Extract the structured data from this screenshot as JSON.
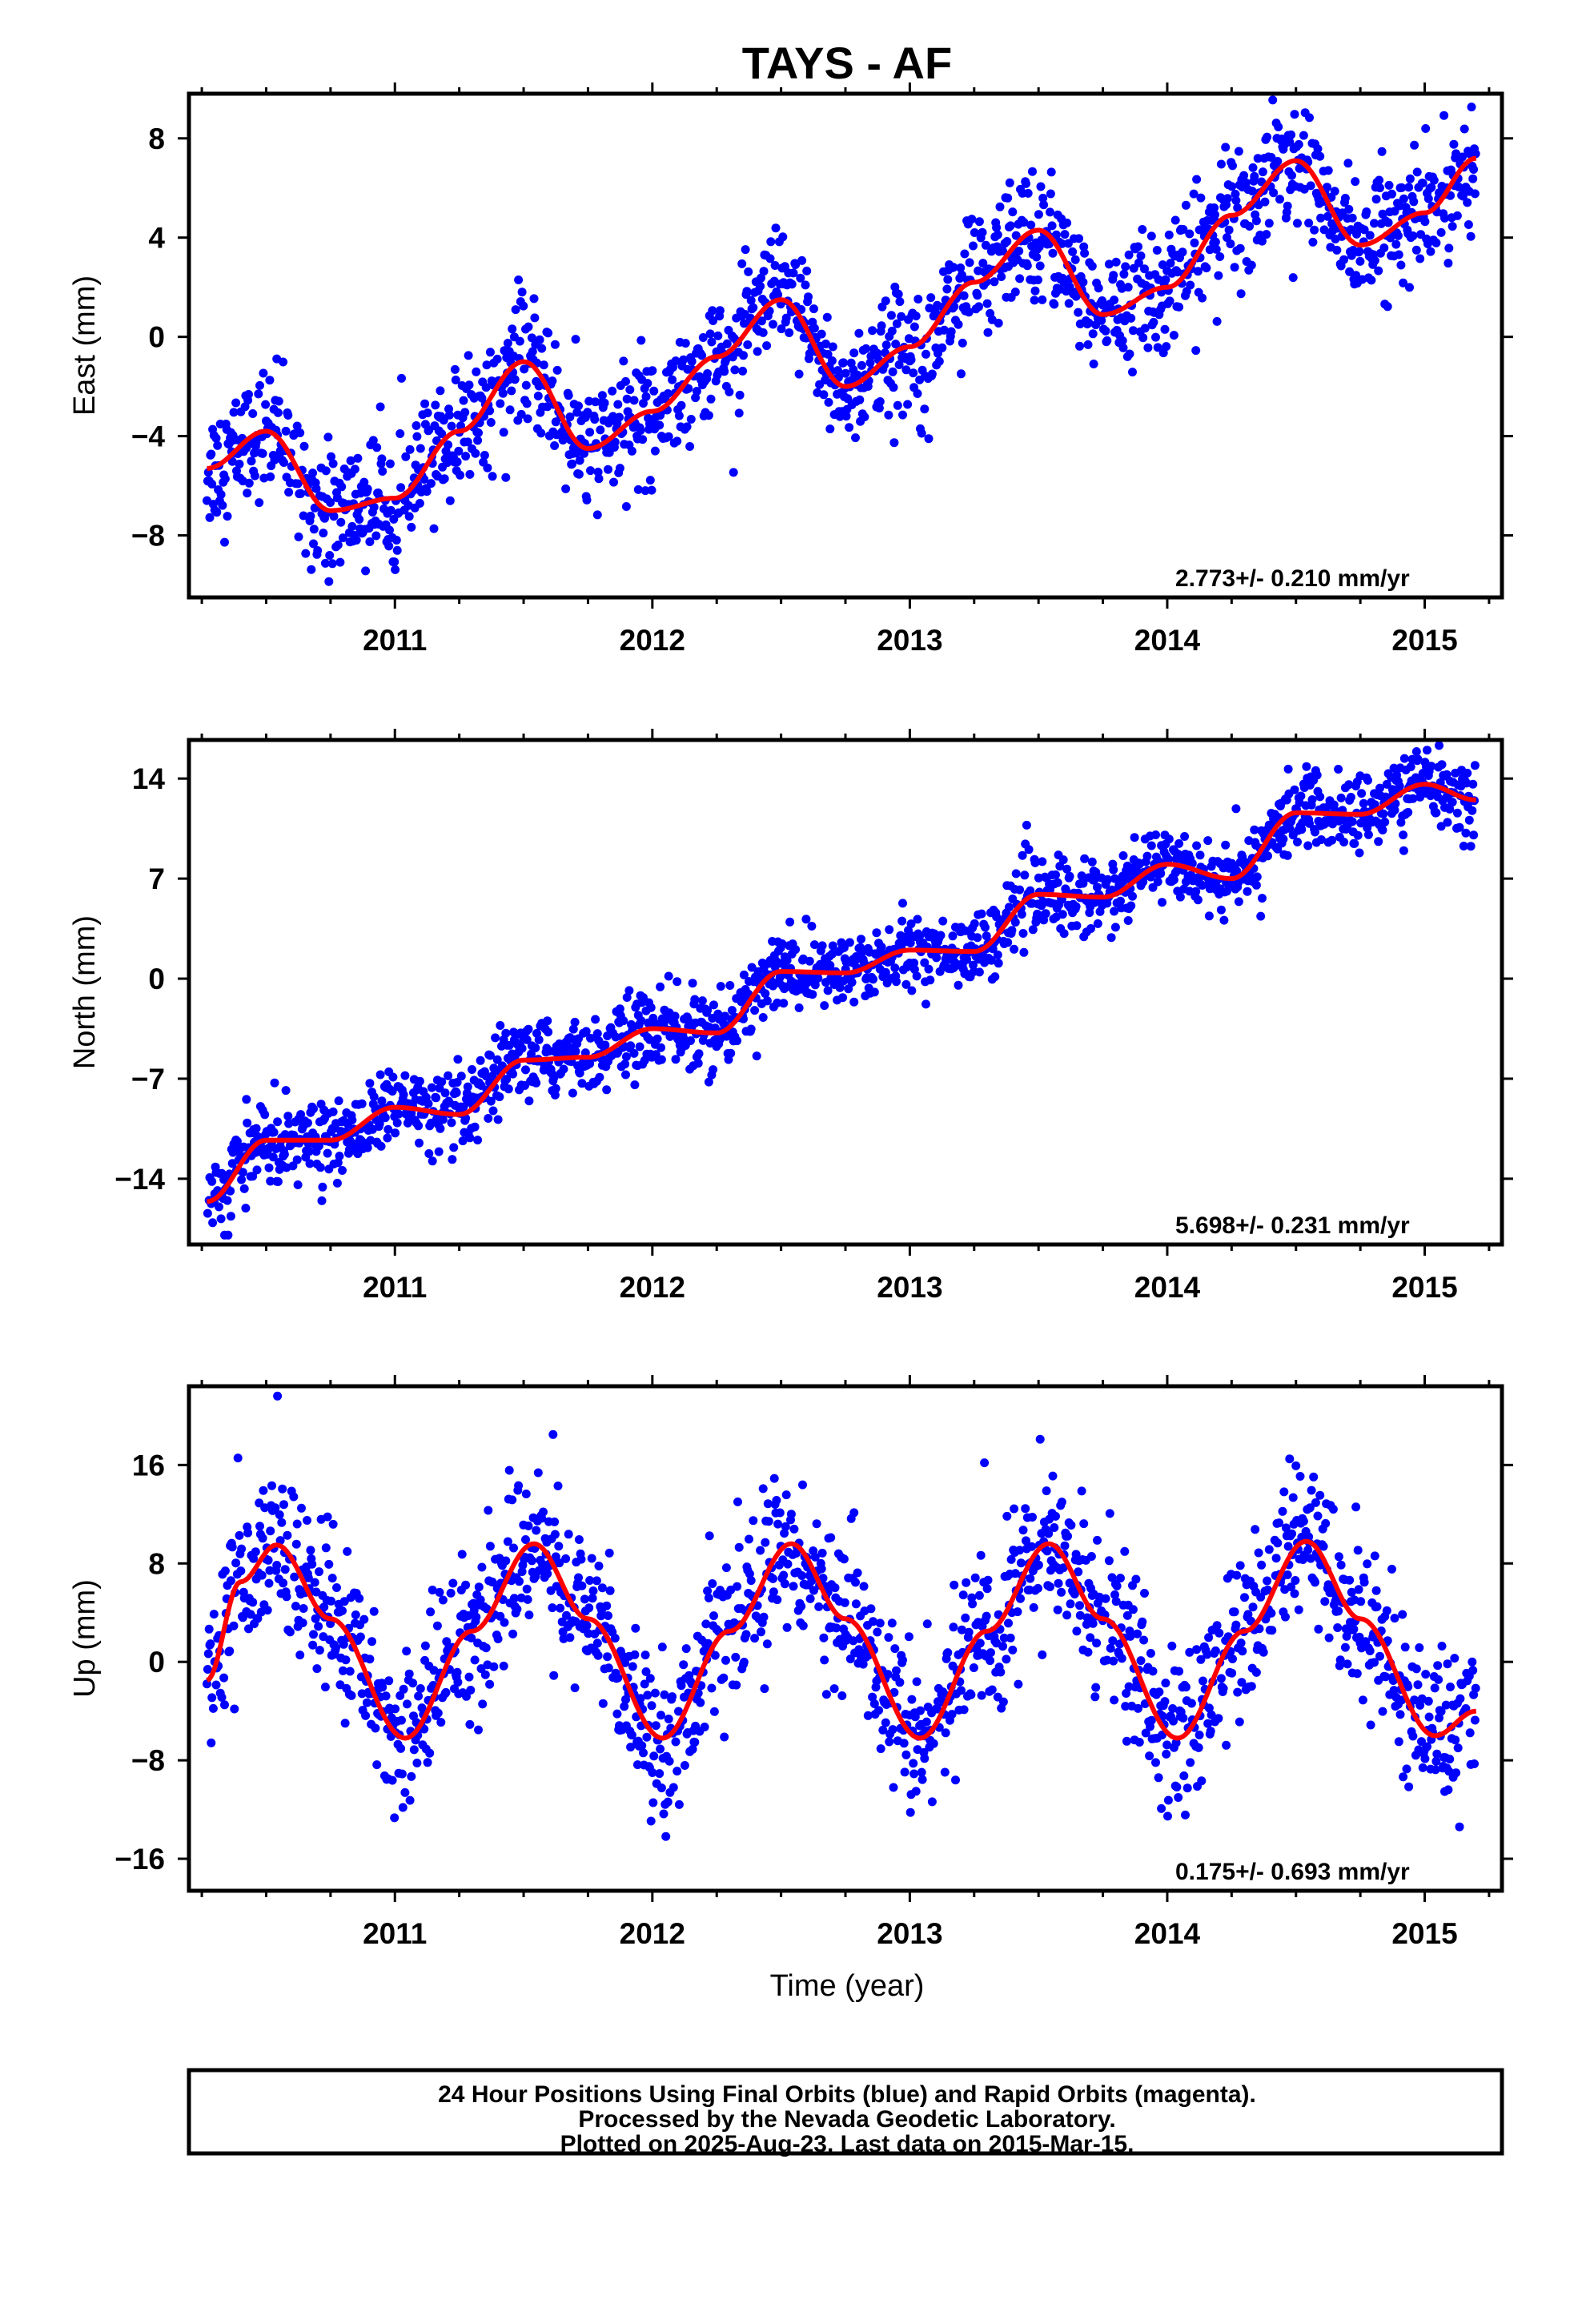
{
  "title": "TAYS - AF",
  "x_axis_label": "Time (year)",
  "caption": {
    "line1": "24 Hour Positions Using Final Orbits (blue) and Rapid Orbits (magenta).",
    "line2": "Processed by the Nevada Geodetic Laboratory.",
    "line3": "Plotted on 2025-Aug-23. Last data on 2015-Mar-15."
  },
  "colors": {
    "points": "#0000ff",
    "model": "#ff0000",
    "frame": "#000000"
  },
  "chart_data": [
    {
      "type": "scatter",
      "title": "TAYS - AF",
      "ylabel": "East (mm)",
      "xlabel": "",
      "xlim": [
        2010.2,
        2015.3
      ],
      "ylim": [
        -10.5,
        9.8
      ],
      "y_ticks": [
        8,
        4,
        0,
        -4,
        -8
      ],
      "y_tick_labels": [
        "8",
        "4",
        "0",
        "−4",
        "−8"
      ],
      "x_ticks": [
        2011,
        2012,
        2013,
        2014,
        2015
      ],
      "x_tick_labels": [
        "2011",
        "2012",
        "2013",
        "2014",
        "2015"
      ],
      "rate": "2.773+/- 0.210 mm/yr",
      "data_start": 2010.27,
      "data_end": 2015.2,
      "series": [
        {
          "name": "24 Hour Positions (final orbits)",
          "style": "points"
        },
        {
          "name": "model fit",
          "style": "line",
          "x": [
            2010.27,
            2010.5,
            2010.75,
            2011.0,
            2011.25,
            2011.5,
            2011.75,
            2012.0,
            2012.25,
            2012.5,
            2012.75,
            2013.0,
            2013.25,
            2013.5,
            2013.75,
            2014.0,
            2014.25,
            2014.5,
            2014.75,
            2015.0,
            2015.2
          ],
          "y": [
            -5.3,
            -3.8,
            -7.0,
            -6.5,
            -3.8,
            -1.0,
            -4.5,
            -3.0,
            -0.8,
            1.5,
            -2.0,
            -0.4,
            2.2,
            4.3,
            0.9,
            2.0,
            4.9,
            7.1,
            3.7,
            5.0,
            7.2
          ]
        }
      ]
    },
    {
      "type": "scatter",
      "ylabel": "North (mm)",
      "xlabel": "",
      "xlim": [
        2010.2,
        2015.3
      ],
      "ylim": [
        -18.6,
        16.7
      ],
      "y_ticks": [
        14,
        7,
        0,
        -7,
        -14
      ],
      "y_tick_labels": [
        "14",
        "7",
        "0",
        "−7",
        "−14"
      ],
      "x_ticks": [
        2011,
        2012,
        2013,
        2014,
        2015
      ],
      "x_tick_labels": [
        "2011",
        "2012",
        "2013",
        "2014",
        "2015"
      ],
      "rate": "5.698+/- 0.231 mm/yr",
      "data_start": 2010.27,
      "data_end": 2015.2,
      "series": [
        {
          "name": "24 Hour Positions (final orbits)",
          "style": "points"
        },
        {
          "name": "model fit",
          "style": "line",
          "x": [
            2010.27,
            2010.5,
            2010.75,
            2011.0,
            2011.25,
            2011.5,
            2011.75,
            2012.0,
            2012.25,
            2012.5,
            2012.75,
            2013.0,
            2013.25,
            2013.5,
            2013.75,
            2014.0,
            2014.25,
            2014.5,
            2014.75,
            2015.0,
            2015.2
          ],
          "y": [
            -15.6,
            -11.3,
            -11.3,
            -9.0,
            -9.5,
            -5.7,
            -5.5,
            -3.5,
            -3.8,
            0.5,
            0.4,
            2.0,
            1.9,
            5.9,
            5.7,
            8.0,
            7.0,
            11.6,
            11.5,
            13.6,
            12.5
          ]
        }
      ]
    },
    {
      "type": "scatter",
      "ylabel": "Up (mm)",
      "xlabel": "Time (year)",
      "xlim": [
        2010.2,
        2015.3
      ],
      "ylim": [
        -18.6,
        22.4
      ],
      "y_ticks": [
        16,
        8,
        0,
        -8,
        -16
      ],
      "y_tick_labels": [
        "16",
        "8",
        "0",
        "−8",
        "−16"
      ],
      "x_ticks": [
        2011,
        2012,
        2013,
        2014,
        2015
      ],
      "x_tick_labels": [
        "2011",
        "2012",
        "2013",
        "2014",
        "2015"
      ],
      "rate": "0.175+/- 0.693 mm/yr",
      "data_start": 2010.27,
      "data_end": 2015.2,
      "series": [
        {
          "name": "24 Hour Positions (final orbits)",
          "style": "points"
        },
        {
          "name": "model fit",
          "style": "line",
          "x": [
            2010.27,
            2010.4,
            2010.54,
            2010.75,
            2011.04,
            2011.3,
            2011.54,
            2011.75,
            2012.04,
            2012.3,
            2012.54,
            2012.75,
            2013.04,
            2013.3,
            2013.54,
            2013.75,
            2014.04,
            2014.3,
            2014.54,
            2014.75,
            2015.04,
            2015.2
          ],
          "y": [
            -1.5,
            6.5,
            9.5,
            3.5,
            -6.2,
            2.5,
            9.6,
            3.5,
            -6.2,
            2.5,
            9.6,
            3.5,
            -6.2,
            2.5,
            9.6,
            3.5,
            -6.2,
            2.5,
            9.8,
            3.5,
            -6.0,
            -4.0
          ]
        }
      ]
    }
  ]
}
